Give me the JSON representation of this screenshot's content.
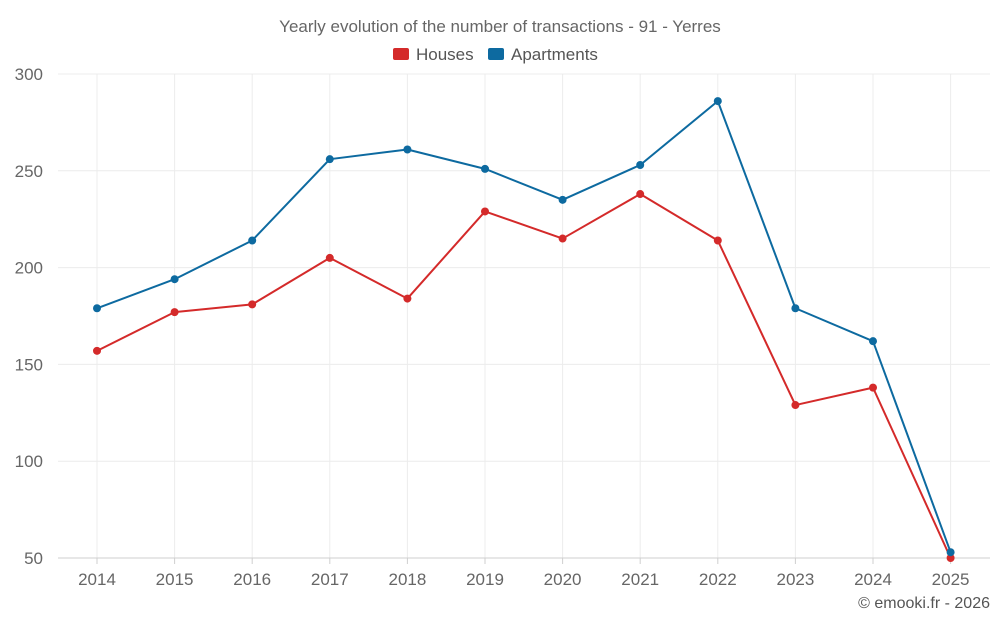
{
  "chart_data": {
    "type": "line",
    "title": "Yearly evolution of the number of transactions - 91 - Yerres",
    "xlabel": "",
    "ylabel": "",
    "categories": [
      "2014",
      "2015",
      "2016",
      "2017",
      "2018",
      "2019",
      "2020",
      "2021",
      "2022",
      "2023",
      "2024",
      "2025"
    ],
    "series": [
      {
        "name": "Houses",
        "color": "#d42a2a",
        "values": [
          157,
          177,
          181,
          205,
          184,
          229,
          215,
          238,
          214,
          129,
          138,
          50
        ]
      },
      {
        "name": "Apartments",
        "color": "#0d6aa0",
        "values": [
          179,
          194,
          214,
          256,
          261,
          251,
          235,
          253,
          286,
          179,
          162,
          53
        ]
      }
    ],
    "ylim": [
      50,
      300
    ],
    "yticks": [
      "50",
      "100",
      "150",
      "200",
      "250",
      "300"
    ],
    "grid": true,
    "legend_position": "top-center"
  },
  "credit": "© emooki.fr - 2026"
}
